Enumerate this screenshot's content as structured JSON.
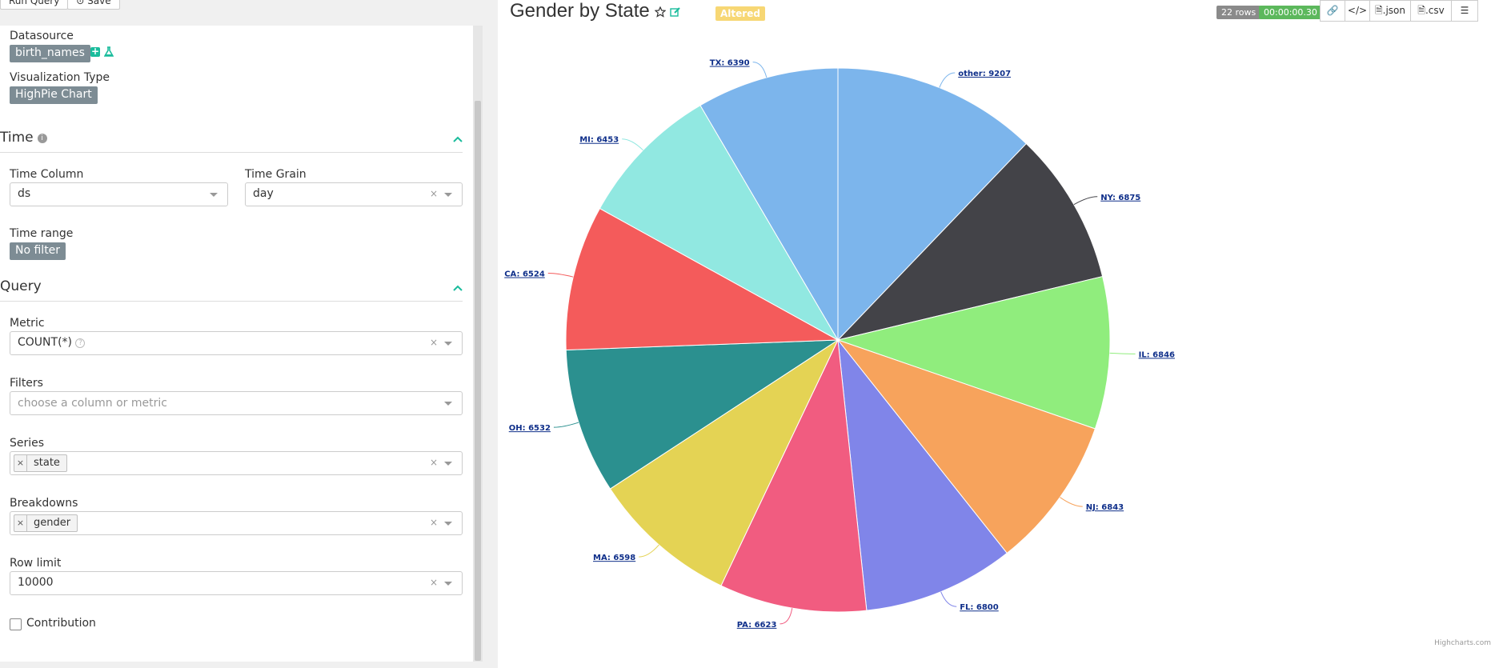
{
  "top_buttons": [
    "Run Query",
    "Save"
  ],
  "datasource": {
    "label": "Datasource",
    "value": "birth_names"
  },
  "viz_type": {
    "label": "Visualization Type",
    "value": "HighPie Chart"
  },
  "time_section": {
    "title": "Time",
    "time_column": {
      "label": "Time Column",
      "value": "ds"
    },
    "time_grain": {
      "label": "Time Grain",
      "value": "day",
      "clear": "×"
    },
    "time_range": {
      "label": "Time range",
      "value": "No filter"
    }
  },
  "query_section": {
    "title": "Query",
    "metric": {
      "label": "Metric",
      "value": "COUNT(*)",
      "clear": "×"
    },
    "filters": {
      "label": "Filters",
      "placeholder": "choose a column or metric"
    },
    "series": {
      "label": "Series",
      "chip": "state",
      "chip_remove": "×",
      "clear": "×"
    },
    "breakdowns": {
      "label": "Breakdowns",
      "chip": "gender",
      "chip_remove": "×",
      "clear": "×"
    },
    "row_limit": {
      "label": "Row limit",
      "value": "10000",
      "clear": "×"
    },
    "contribution": {
      "label": "Contribution",
      "checked": false
    }
  },
  "header": {
    "title": "Gender by State",
    "altered": "Altered",
    "rows_badge": "22 rows",
    "time_badge": "00:00:00.30",
    "json_btn": ".json",
    "csv_btn": ".csv"
  },
  "colors": {
    "accent": "#1abc9c",
    "rows_badge": "#8a8a8a",
    "time_badge": "#5cb85c",
    "altered": "#f7d774"
  },
  "chart_data": {
    "type": "pie",
    "slices": [
      {
        "label": "other",
        "value": 9207,
        "text": "other: 9207",
        "color": "#7cb5ec"
      },
      {
        "label": "NY",
        "value": 6875,
        "text": "NY: 6875",
        "color": "#434348"
      },
      {
        "label": "IL",
        "value": 6846,
        "text": "IL: 6846",
        "color": "#90ed7d"
      },
      {
        "label": "NJ",
        "value": 6843,
        "text": "NJ: 6843",
        "color": "#f7a35c"
      },
      {
        "label": "FL",
        "value": 6800,
        "text": "FL: 6800",
        "color": "#8085e9"
      },
      {
        "label": "PA",
        "value": 6623,
        "text": "PA: 6623",
        "color": "#f15c80"
      },
      {
        "label": "MA",
        "value": 6598,
        "text": "MA: 6598",
        "color": "#e4d354"
      },
      {
        "label": "OH",
        "value": 6532,
        "text": "OH: 6532",
        "color": "#2b908f"
      },
      {
        "label": "CA",
        "value": 6524,
        "text": "CA: 6524",
        "color": "#f45b5b"
      },
      {
        "label": "MI",
        "value": 6453,
        "text": "MI: 6453",
        "color": "#91e8e1"
      },
      {
        "label": "TX",
        "value": 6390,
        "text": "TX: 6390",
        "color": "#7cb5ec"
      }
    ],
    "credit": "Highcharts.com"
  }
}
